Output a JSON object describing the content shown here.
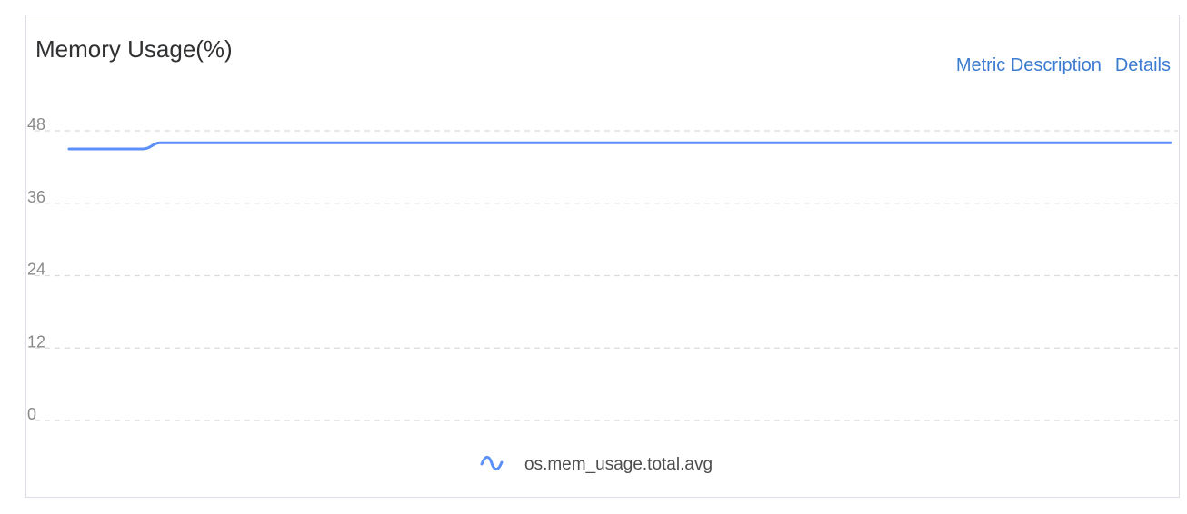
{
  "panel": {
    "title": "Memory Usage(%)",
    "links": {
      "metric_description": "Metric Description",
      "details": "Details"
    }
  },
  "chart_data": {
    "type": "line",
    "title": "Memory Usage(%)",
    "xlabel": "",
    "ylabel": "",
    "ylim": [
      0,
      48
    ],
    "y_ticks": [
      "0",
      "12",
      "24",
      "36",
      "48"
    ],
    "grid": true,
    "legend_placement": "bottom-center",
    "series": [
      {
        "name": "os.mem_usage.total.avg",
        "color": "#5b8ff9",
        "icon": "wave-line-icon",
        "values": [
          45,
          45,
          45,
          45,
          45,
          46,
          46,
          46,
          46,
          46,
          46,
          46,
          46,
          46,
          46,
          46,
          46,
          46,
          46,
          46,
          46,
          46,
          46,
          46,
          46,
          46,
          46,
          46,
          46,
          46,
          46,
          46,
          46,
          46,
          46,
          46,
          46,
          46,
          46,
          46,
          46,
          46,
          46,
          46,
          46,
          46,
          46,
          46,
          46,
          46,
          46,
          46,
          46,
          46,
          46,
          46,
          46,
          46,
          46,
          46,
          46
        ]
      }
    ]
  }
}
